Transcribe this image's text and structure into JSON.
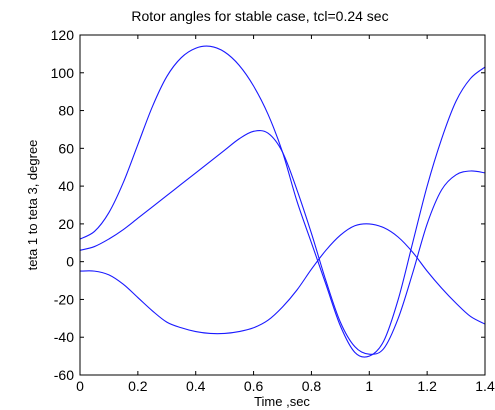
{
  "chart_data": {
    "type": "line",
    "title": "Rotor angles for stable case, tcl=0.24 sec",
    "xlabel": "Time ,sec",
    "ylabel": "teta 1 to teta 3, degree",
    "xlim": [
      0,
      1.4
    ],
    "ylim": [
      -60,
      120
    ],
    "xticks": [
      "0",
      "0.2",
      "0.4",
      "0.6",
      "0.8",
      "1",
      "1.2",
      "1.4"
    ],
    "yticks": [
      "-60",
      "-40",
      "-20",
      "0",
      "20",
      "40",
      "60",
      "80",
      "100",
      "120"
    ],
    "grid": false,
    "line_color": "#1a1aff",
    "series": [
      {
        "x": [
          0,
          0.05,
          0.1,
          0.15,
          0.2,
          0.25,
          0.3,
          0.35,
          0.4,
          0.45,
          0.5,
          0.55,
          0.6,
          0.65,
          0.7,
          0.75,
          0.8,
          0.85,
          0.9,
          0.95,
          1.0,
          1.05,
          1.1,
          1.15,
          1.2,
          1.25,
          1.3,
          1.35,
          1.4
        ],
        "values": [
          12,
          16,
          26,
          42,
          62,
          82,
          98,
          108,
          113,
          114,
          111,
          104,
          93,
          78,
          58,
          32,
          10,
          -12,
          -34,
          -48,
          -50,
          -42,
          -20,
          10,
          40,
          65,
          85,
          97,
          103
        ]
      },
      {
        "x": [
          0,
          0.05,
          0.1,
          0.15,
          0.2,
          0.25,
          0.3,
          0.35,
          0.4,
          0.45,
          0.5,
          0.55,
          0.6,
          0.65,
          0.7,
          0.75,
          0.8,
          0.85,
          0.9,
          0.95,
          1.0,
          1.05,
          1.1,
          1.15,
          1.2,
          1.25,
          1.3,
          1.35,
          1.4
        ],
        "values": [
          6,
          8,
          12,
          17,
          23,
          29,
          35,
          41,
          47,
          53,
          59,
          65,
          69,
          68,
          58,
          38,
          15,
          -10,
          -32,
          -45,
          -49,
          -46,
          -30,
          -6,
          20,
          38,
          46,
          48,
          47
        ]
      },
      {
        "x": [
          0,
          0.05,
          0.1,
          0.15,
          0.2,
          0.25,
          0.3,
          0.35,
          0.4,
          0.45,
          0.5,
          0.55,
          0.6,
          0.65,
          0.7,
          0.75,
          0.8,
          0.85,
          0.9,
          0.95,
          1.0,
          1.05,
          1.1,
          1.15,
          1.2,
          1.25,
          1.3,
          1.35,
          1.4
        ],
        "values": [
          -5,
          -5,
          -7,
          -12,
          -19,
          -26,
          -32,
          -35,
          -37,
          -38,
          -38,
          -37,
          -35,
          -31,
          -24,
          -15,
          -4,
          6,
          14,
          19,
          20,
          18,
          13,
          5,
          -5,
          -14,
          -22,
          -29,
          -33
        ]
      }
    ]
  }
}
